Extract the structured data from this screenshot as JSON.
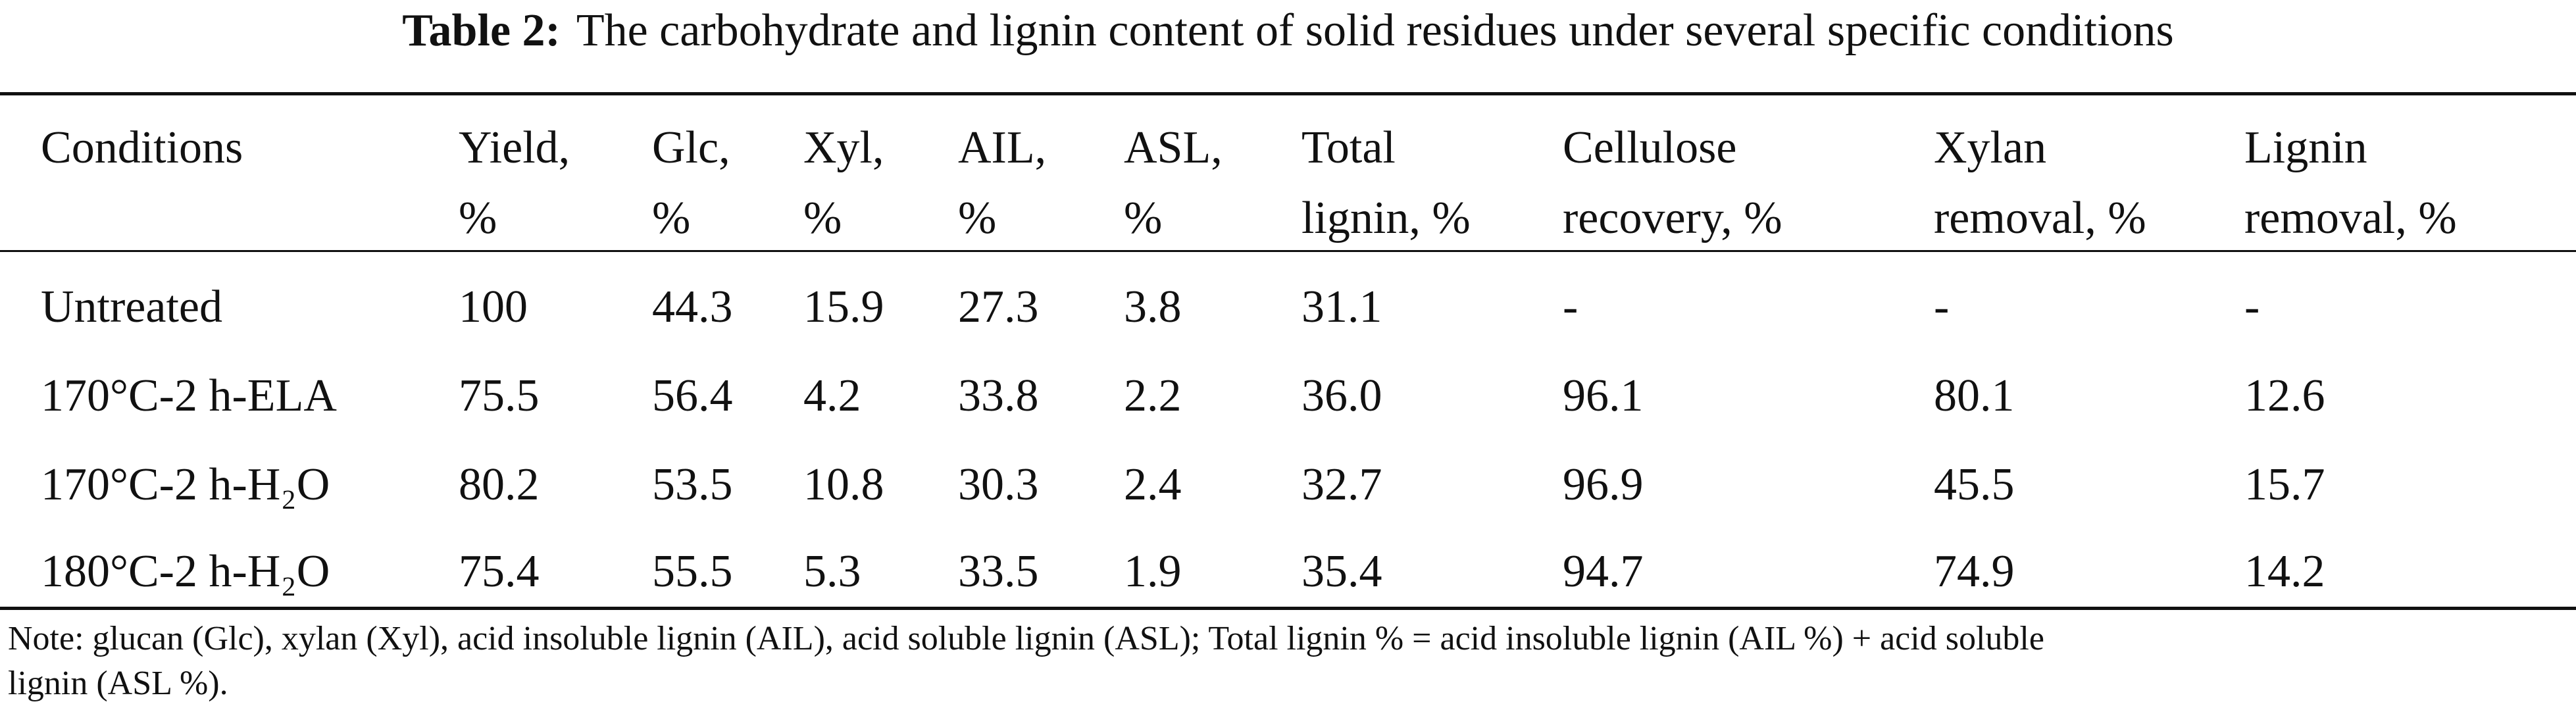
{
  "title": {
    "label": "Table 2:",
    "text": "The carbohydrate and lignin content of solid residues under several specific conditions"
  },
  "table": {
    "header": [
      [
        "Conditions"
      ],
      [
        "Yield,",
        "%"
      ],
      [
        "Glc,",
        "%"
      ],
      [
        "Xyl,",
        "%"
      ],
      [
        "AIL,",
        "%"
      ],
      [
        "ASL,",
        "%"
      ],
      [
        "Total",
        "lignin, %"
      ],
      [
        "Cellulose",
        "recovery, %"
      ],
      [
        "Xylan",
        "removal, %"
      ],
      [
        "Lignin",
        "removal, %"
      ]
    ],
    "rows": [
      [
        "Untreated",
        "100",
        "44.3",
        "15.9",
        "27.3",
        "3.8",
        "31.1",
        "-",
        "-",
        "-"
      ],
      [
        "170°C-2 h-ELA",
        "75.5",
        "56.4",
        "4.2",
        "33.8",
        "2.2",
        "36.0",
        "96.1",
        "80.1",
        "12.6"
      ],
      [
        "170°C-2 h-H₂O",
        "80.2",
        "53.5",
        "10.8",
        "30.3",
        "2.4",
        "32.7",
        "96.9",
        "45.5",
        "15.7"
      ],
      [
        "180°C-2 h-H₂O",
        "75.4",
        "55.5",
        "5.3",
        "33.5",
        "1.9",
        "35.4",
        "94.7",
        "74.9",
        "14.2"
      ]
    ]
  },
  "note": [
    "Note: glucan (Glc), xylan (Xyl), acid insoluble lignin (AIL), acid soluble lignin (ASL); Total lignin % = acid insoluble lignin (AIL %) + acid soluble",
    "lignin (ASL %)."
  ]
}
